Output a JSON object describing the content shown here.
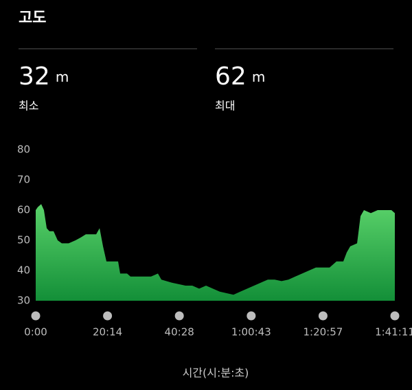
{
  "title": "고도",
  "stats": [
    {
      "value": 32,
      "unit": "m",
      "label": "최소"
    },
    {
      "value": 62,
      "unit": "m",
      "label": "최대"
    }
  ],
  "chart_data": {
    "type": "area",
    "color": "#2fb84e",
    "xlabel": "시간(시:분:초)",
    "x": [
      0,
      35,
      93,
      139,
      186,
      232,
      302,
      371,
      441,
      557,
      673,
      766,
      847,
      963,
      1022,
      1080,
      1138,
      1196,
      1312,
      1393,
      1428,
      1544,
      1602,
      1718,
      1950,
      2066,
      2124,
      2298,
      2533,
      2647,
      2763,
      2879,
      2995,
      3111,
      3227,
      3343,
      3459,
      3575,
      3691,
      3807,
      3924,
      4040,
      4156,
      4272,
      4388,
      4504,
      4620,
      4736,
      4852,
      4968,
      5084,
      5200,
      5258,
      5317,
      5433,
      5491,
      5549,
      5665,
      5781,
      5897,
      6013,
      6071
    ],
    "values": [
      60,
      61,
      62,
      60,
      54,
      53,
      53,
      50,
      49,
      49,
      50,
      51,
      52,
      52,
      52,
      54,
      48,
      43,
      43,
      43,
      39,
      39,
      38,
      38,
      38,
      39,
      37,
      36,
      35,
      35,
      34,
      35,
      34,
      33,
      32.5,
      32,
      33,
      34,
      35,
      36,
      37,
      37,
      36.5,
      37,
      38,
      39,
      40,
      41,
      41,
      41,
      43,
      43,
      46,
      48,
      49,
      58,
      60,
      59,
      60,
      60,
      60,
      59
    ],
    "xlim": [
      0,
      6071
    ],
    "xticks": [
      {
        "value": 0,
        "label": "0:00"
      },
      {
        "value": 1214,
        "label": "20:14"
      },
      {
        "value": 2428,
        "label": "40:28"
      },
      {
        "value": 3643,
        "label": "1:00:43"
      },
      {
        "value": 4857,
        "label": "1:20:57"
      },
      {
        "value": 6071,
        "label": "1:41:11"
      }
    ],
    "ylim": [
      30,
      80
    ],
    "yticks": [
      30,
      40,
      50,
      60,
      70,
      80
    ]
  }
}
